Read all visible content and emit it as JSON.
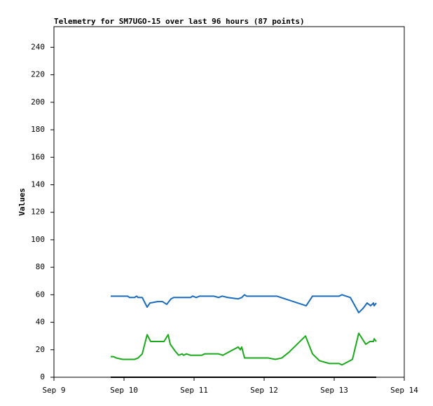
{
  "chart_data": {
    "type": "line",
    "title": "Telemetry for SM7UGO-15 over last 96 hours (87 points)",
    "y_label": "Values",
    "xlim": [
      9,
      14
    ],
    "xticks": [
      {
        "value": 9,
        "label": "Sep 9"
      },
      {
        "value": 10,
        "label": "Sep 10"
      },
      {
        "value": 11,
        "label": "Sep 11"
      },
      {
        "value": 12,
        "label": "Sep 12"
      },
      {
        "value": 13,
        "label": "Sep 13"
      },
      {
        "value": 14,
        "label": "Sep 14"
      }
    ],
    "ylim": [
      0,
      255
    ],
    "yticks": [
      0,
      20,
      40,
      60,
      80,
      100,
      120,
      140,
      160,
      180,
      200,
      220,
      240
    ],
    "series": [
      {
        "color": "#1a6bbf",
        "x": [
          9.81,
          10.05,
          10.08,
          10.15,
          10.18,
          10.2,
          10.26,
          10.33,
          10.37,
          10.48,
          10.55,
          10.61,
          10.67,
          10.71,
          10.95,
          10.98,
          11.03,
          11.08,
          11.28,
          11.35,
          11.4,
          11.48,
          11.63,
          11.68,
          11.72,
          11.75,
          12.18,
          12.6,
          12.69,
          13.07,
          13.11,
          13.23,
          13.35,
          13.41,
          13.47,
          13.52,
          13.56,
          13.57,
          13.6
        ],
        "values": [
          59,
          59,
          58,
          58,
          59,
          58,
          58,
          51,
          54,
          55,
          55,
          53,
          57,
          58,
          58,
          59,
          58,
          59,
          59,
          58,
          59,
          58,
          57,
          58,
          60,
          59,
          59,
          52,
          59,
          59,
          60,
          58,
          47,
          50,
          54,
          52,
          54,
          52,
          54
        ]
      },
      {
        "color": "#1aaa1a",
        "x": [
          9.81,
          9.85,
          9.89,
          9.98,
          10.15,
          10.2,
          10.26,
          10.33,
          10.38,
          10.53,
          10.57,
          10.63,
          10.66,
          10.73,
          10.78,
          10.83,
          10.85,
          10.89,
          10.95,
          11.11,
          11.15,
          11.35,
          11.41,
          11.63,
          11.66,
          11.68,
          11.72,
          12.06,
          12.16,
          12.25,
          12.35,
          12.59,
          12.69,
          12.79,
          12.93,
          13.07,
          13.11,
          13.15,
          13.26,
          13.35,
          13.45,
          13.51,
          13.56,
          13.57,
          13.6
        ],
        "values": [
          15,
          15,
          14,
          13,
          13,
          14,
          17,
          31,
          26,
          26,
          26,
          31,
          24,
          19,
          16,
          17,
          16,
          17,
          16,
          16,
          17,
          17,
          16,
          22,
          20,
          22,
          14,
          14,
          13,
          14,
          18,
          30,
          17,
          12,
          10,
          10,
          9,
          10,
          13,
          32,
          24,
          26,
          26,
          28,
          26
        ]
      },
      {
        "color": "#000000",
        "x": [
          9.81,
          13.6
        ],
        "values": [
          0,
          0
        ]
      }
    ]
  }
}
